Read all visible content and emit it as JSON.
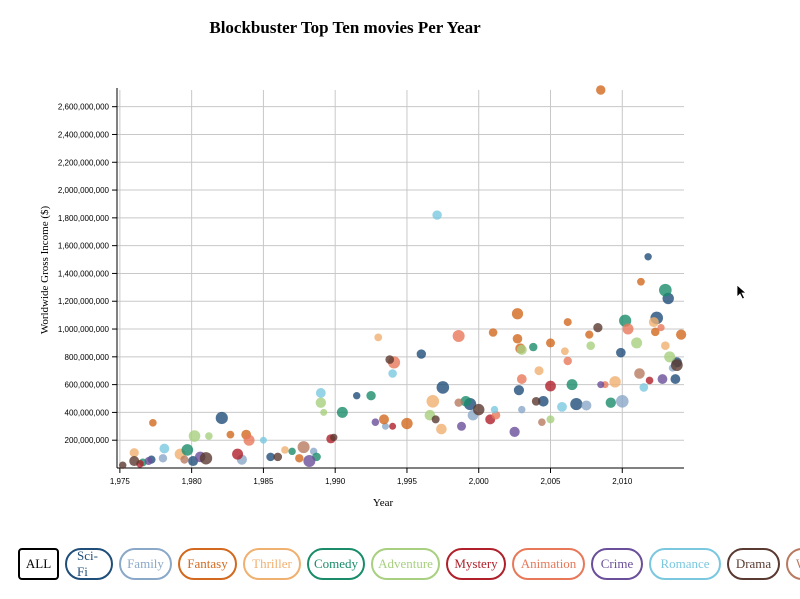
{
  "chart_data": {
    "type": "scatter",
    "title": "Blockbuster Top Ten movies Per Year",
    "xlabel": "Year",
    "ylabel": "Worldwide Gross Income ($)",
    "xlim": [
      1974.8,
      2014.3
    ],
    "ylim": [
      0,
      2720000000
    ],
    "x_ticks": [
      1975,
      1980,
      1985,
      1990,
      1995,
      2000,
      2005,
      2010
    ],
    "x_tick_labels": [
      "1,975",
      "1,980",
      "1,985",
      "1,990",
      "1,995",
      "2,000",
      "2,005",
      "2,010"
    ],
    "y_ticks": [
      200000000,
      400000000,
      600000000,
      800000000,
      1000000000,
      1200000000,
      1400000000,
      1600000000,
      1800000000,
      2000000000,
      2200000000,
      2400000000,
      2600000000
    ],
    "y_tick_labels": [
      "200,000,000",
      "400,000,000",
      "600,000,000",
      "800,000,000",
      "1,000,000,000",
      "1,200,000,000",
      "1,400,000,000",
      "1,600,000,000",
      "1,800,000,000",
      "2,000,000,000",
      "2,200,000,000",
      "2,400,000,000",
      "2,600,000,000"
    ],
    "grid": true,
    "series": [
      {
        "name": "Sci-Fi",
        "color": "#1f4e79",
        "points": [
          [
            1977.2,
            60000000
          ],
          [
            1980.1,
            50000000
          ],
          [
            1982.1,
            360000000
          ],
          [
            1985.5,
            80000000
          ],
          [
            1991.5,
            520000000
          ],
          [
            1996.0,
            820000000
          ],
          [
            1997.5,
            580000000
          ],
          [
            1999.4,
            460000000
          ],
          [
            2002.8,
            560000000
          ],
          [
            2004.5,
            480000000
          ],
          [
            2006.8,
            460000000
          ],
          [
            2009.9,
            830000000
          ],
          [
            2011.8,
            1520000000
          ],
          [
            2012.4,
            1080000000
          ],
          [
            2013.2,
            1220000000
          ],
          [
            2013.8,
            760000000
          ],
          [
            2013.7,
            640000000
          ]
        ]
      },
      {
        "name": "Family",
        "color": "#8aa8c8",
        "points": [
          [
            1978.0,
            70000000
          ],
          [
            1983.5,
            60000000
          ],
          [
            1988.5,
            120000000
          ],
          [
            1993.5,
            300000000
          ],
          [
            1999.6,
            380000000
          ],
          [
            2003.0,
            420000000
          ],
          [
            2007.5,
            450000000
          ],
          [
            2010.0,
            480000000
          ],
          [
            2013.5,
            720000000
          ]
        ]
      },
      {
        "name": "Fantasy",
        "color": "#d2691e",
        "points": [
          [
            1977.3,
            325000000
          ],
          [
            1982.7,
            240000000
          ],
          [
            1983.8,
            240000000
          ],
          [
            1987.5,
            70000000
          ],
          [
            1993.4,
            350000000
          ],
          [
            1995.0,
            320000000
          ],
          [
            2001.0,
            975000000
          ],
          [
            2002.7,
            930000000
          ],
          [
            2002.9,
            860000000
          ],
          [
            2002.7,
            1110000000
          ],
          [
            2005.0,
            900000000
          ],
          [
            2006.2,
            1050000000
          ],
          [
            2007.7,
            960000000
          ],
          [
            2008.5,
            2720000000
          ],
          [
            2011.3,
            1340000000
          ],
          [
            2012.3,
            980000000
          ],
          [
            2014.1,
            960000000
          ]
        ]
      },
      {
        "name": "Thriller",
        "color": "#f0b070",
        "points": [
          [
            1976.0,
            110000000
          ],
          [
            1979.2,
            100000000
          ],
          [
            1986.5,
            130000000
          ],
          [
            1993.0,
            940000000
          ],
          [
            1996.8,
            480000000
          ],
          [
            1997.4,
            280000000
          ],
          [
            2004.2,
            700000000
          ],
          [
            2006.0,
            840000000
          ],
          [
            2009.5,
            620000000
          ],
          [
            2012.2,
            1050000000
          ],
          [
            2013.0,
            880000000
          ]
        ]
      },
      {
        "name": "Comedy",
        "color": "#1a8c6a",
        "points": [
          [
            1976.6,
            40000000
          ],
          [
            1979.7,
            130000000
          ],
          [
            1987.0,
            120000000
          ],
          [
            1988.7,
            80000000
          ],
          [
            1990.5,
            400000000
          ],
          [
            1992.5,
            520000000
          ],
          [
            1999.1,
            480000000
          ],
          [
            2003.8,
            870000000
          ],
          [
            2006.5,
            600000000
          ],
          [
            2009.2,
            470000000
          ],
          [
            2010.2,
            1060000000
          ],
          [
            2013.0,
            1280000000
          ]
        ]
      },
      {
        "name": "Adventure",
        "color": "#a8d080",
        "points": [
          [
            1980.2,
            230000000
          ],
          [
            1981.2,
            230000000
          ],
          [
            1989.2,
            400000000
          ],
          [
            1989.0,
            470000000
          ],
          [
            1996.6,
            380000000
          ],
          [
            2003.0,
            850000000
          ],
          [
            2005.0,
            350000000
          ],
          [
            2007.8,
            880000000
          ],
          [
            2011.0,
            900000000
          ],
          [
            2013.3,
            800000000
          ]
        ]
      },
      {
        "name": "Mystery",
        "color": "#b0202a",
        "points": [
          [
            1976.4,
            30000000
          ],
          [
            1983.2,
            100000000
          ],
          [
            1989.7,
            210000000
          ],
          [
            1994.0,
            300000000
          ],
          [
            2000.8,
            350000000
          ],
          [
            2005.0,
            590000000
          ],
          [
            2011.9,
            630000000
          ]
        ]
      },
      {
        "name": "Animation",
        "color": "#e8785a",
        "points": [
          [
            1984.0,
            200000000
          ],
          [
            1994.1,
            760000000
          ],
          [
            1998.6,
            950000000
          ],
          [
            2001.2,
            380000000
          ],
          [
            2003.0,
            640000000
          ],
          [
            2006.2,
            770000000
          ],
          [
            2008.8,
            600000000
          ],
          [
            2010.4,
            1000000000
          ],
          [
            2012.7,
            1010000000
          ]
        ]
      },
      {
        "name": "Crime",
        "color": "#6a4f9a",
        "points": [
          [
            1977.0,
            50000000
          ],
          [
            1980.6,
            80000000
          ],
          [
            1988.2,
            50000000
          ],
          [
            1992.8,
            330000000
          ],
          [
            1998.8,
            300000000
          ],
          [
            2002.5,
            260000000
          ],
          [
            2008.5,
            600000000
          ],
          [
            2012.8,
            640000000
          ]
        ]
      },
      {
        "name": "Romance",
        "color": "#7ac8e0",
        "points": [
          [
            1978.1,
            140000000
          ],
          [
            1985.0,
            200000000
          ],
          [
            1989.0,
            540000000
          ],
          [
            1994.0,
            680000000
          ],
          [
            1997.1,
            1820000000
          ],
          [
            2001.1,
            420000000
          ],
          [
            2005.8,
            440000000
          ],
          [
            2011.5,
            580000000
          ]
        ]
      },
      {
        "name": "Drama",
        "color": "#5a3a30",
        "points": [
          [
            1975.2,
            20000000
          ],
          [
            1976.0,
            50000000
          ],
          [
            1981.0,
            70000000
          ],
          [
            1986.0,
            80000000
          ],
          [
            1989.9,
            220000000
          ],
          [
            1993.8,
            780000000
          ],
          [
            1997.0,
            350000000
          ],
          [
            2000.0,
            420000000
          ],
          [
            2004.0,
            480000000
          ],
          [
            2008.3,
            1010000000
          ],
          [
            2013.8,
            740000000
          ]
        ]
      },
      {
        "name": "War",
        "color": "#b87a60",
        "points": [
          [
            1979.5,
            60000000
          ],
          [
            1987.8,
            150000000
          ],
          [
            1998.6,
            470000000
          ],
          [
            2004.4,
            330000000
          ],
          [
            2011.2,
            680000000
          ]
        ]
      }
    ]
  },
  "legend": {
    "all_label": "ALL",
    "items": [
      {
        "label": "Sci-Fi",
        "color": "#1f4e79"
      },
      {
        "label": "Family",
        "color": "#8aa8c8"
      },
      {
        "label": "Fantasy",
        "color": "#d2691e"
      },
      {
        "label": "Thriller",
        "color": "#f0b070"
      },
      {
        "label": "Comedy",
        "color": "#1a8c6a"
      },
      {
        "label": "Adventure",
        "color": "#a8d080"
      },
      {
        "label": "Mystery",
        "color": "#b0202a"
      },
      {
        "label": "Animation",
        "color": "#e8785a"
      },
      {
        "label": "Crime",
        "color": "#6a4f9a"
      },
      {
        "label": "Romance",
        "color": "#7ac8e0"
      },
      {
        "label": "Drama",
        "color": "#5a3a30"
      },
      {
        "label": "War",
        "color": "#b87a60"
      }
    ]
  },
  "cursor_icon": "mouse-pointer-icon"
}
